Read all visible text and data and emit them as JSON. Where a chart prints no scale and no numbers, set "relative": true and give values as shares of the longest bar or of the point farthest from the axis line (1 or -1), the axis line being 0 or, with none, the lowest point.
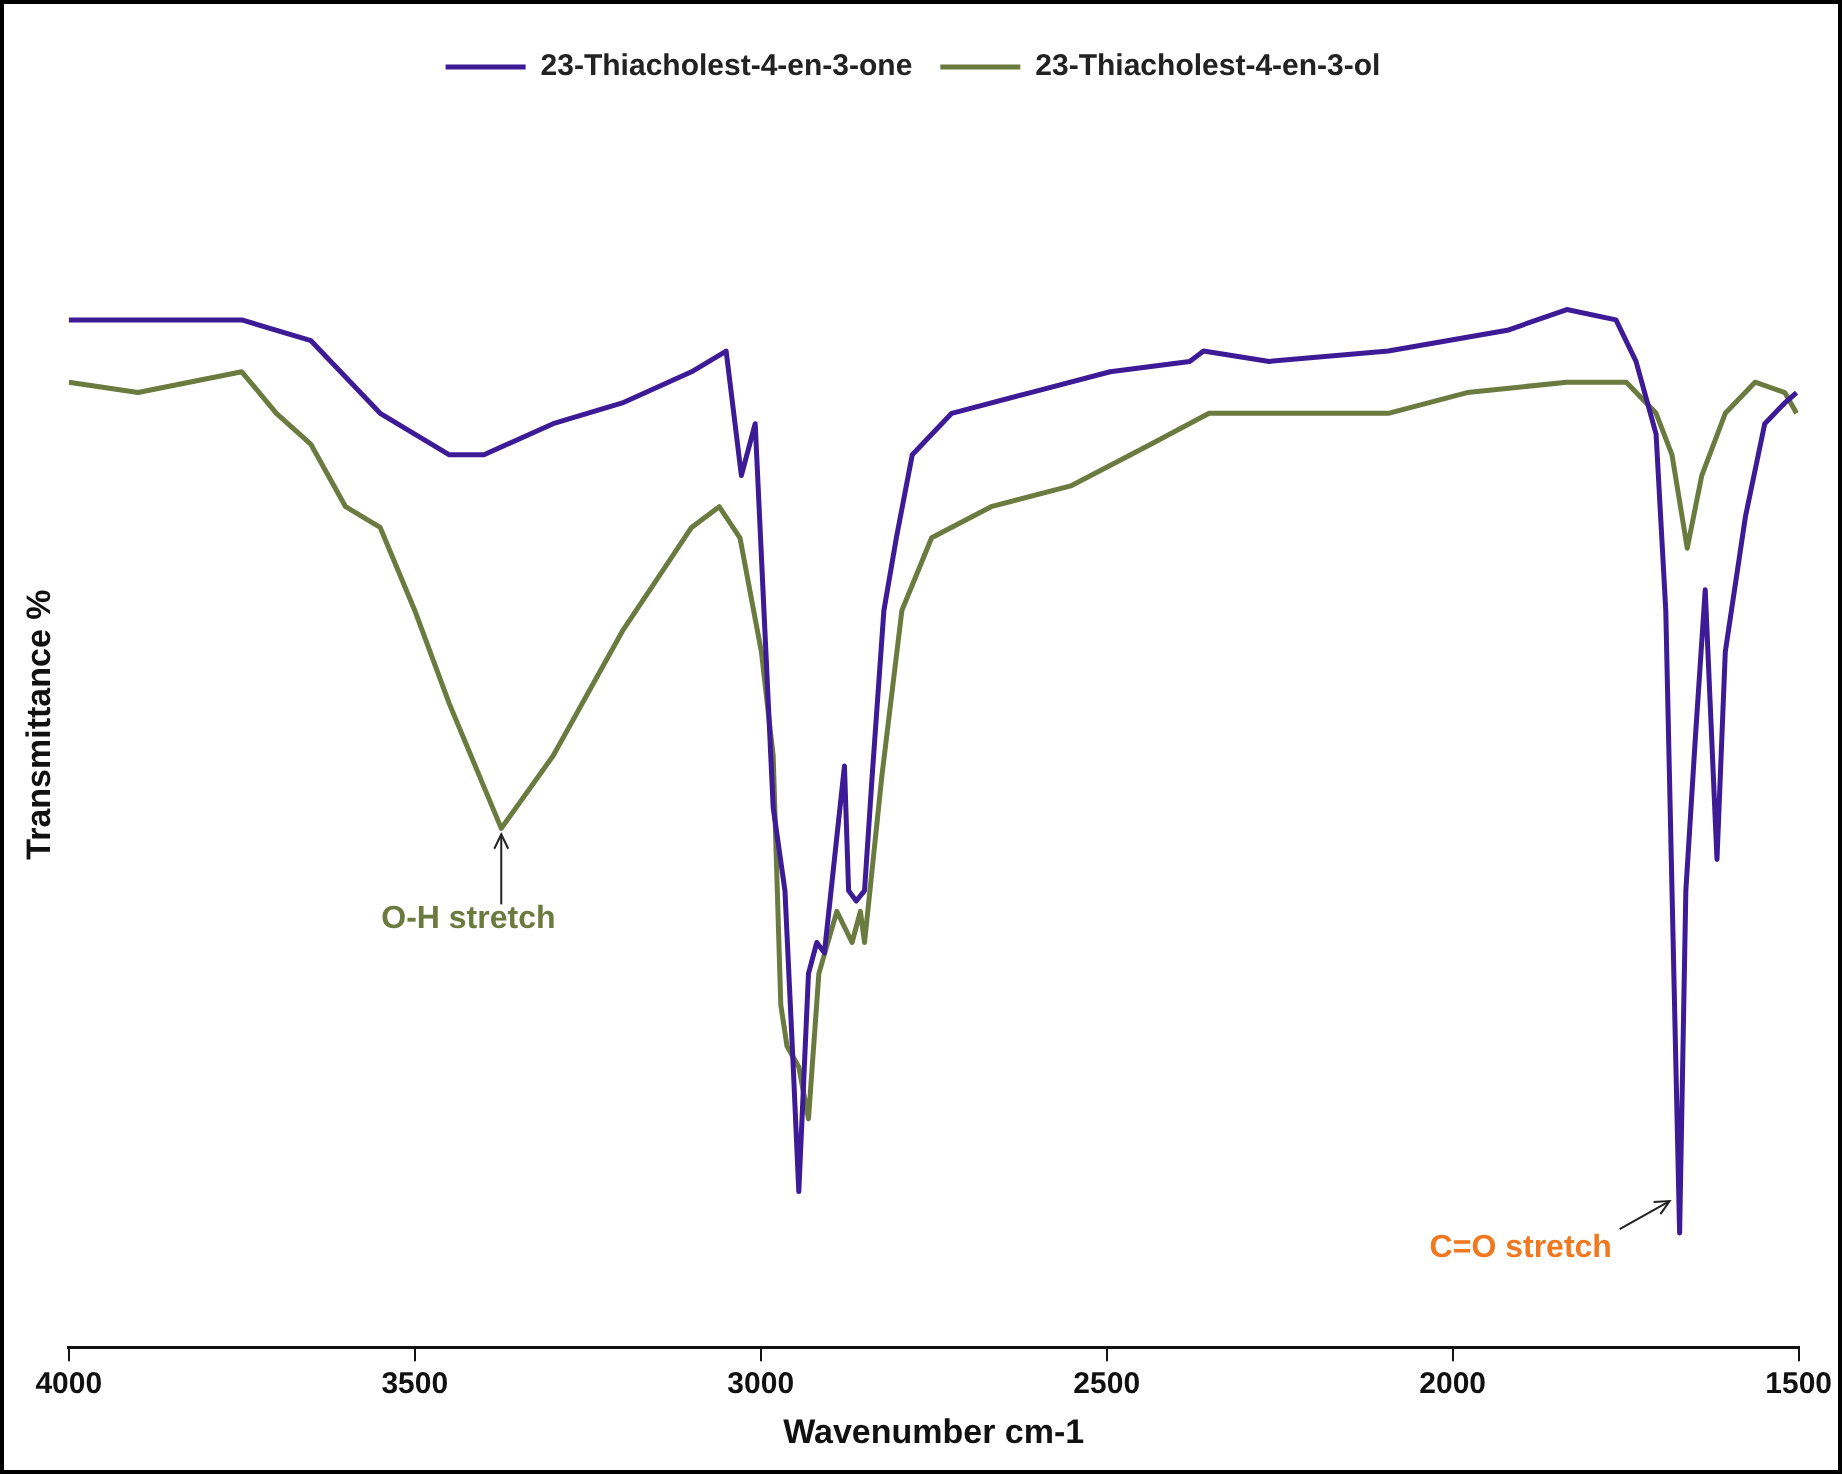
{
  "chart_data": {
    "type": "line",
    "xlabel": "Wavenumber cm-1",
    "ylabel": "Transmittance %",
    "relative": true,
    "xlim": [
      4000,
      1500
    ],
    "xticks": [
      4000,
      3500,
      3000,
      2500,
      2000,
      1500
    ],
    "grid": false,
    "legend": "top",
    "marker": "none",
    "line_style": "solid",
    "series": [
      {
        "name": "23-Thiacholest-4-en-3-one",
        "color": "#3d1a96",
        "x": [
          4000,
          3900,
          3750,
          3650,
          3550,
          3450,
          3400,
          3300,
          3200,
          3100,
          3050,
          3028,
          3008,
          2982,
          2965,
          2953,
          2945,
          2931,
          2919,
          2908,
          2879,
          2873,
          2862,
          2850,
          2839,
          2822,
          2804,
          2781,
          2724,
          2610,
          2495,
          2380,
          2360,
          2265,
          2093,
          1921,
          1835,
          1764,
          1735,
          1706,
          1692,
          1678,
          1672,
          1663,
          1649,
          1635,
          1618,
          1606,
          1577,
          1549,
          1520,
          1503
        ],
        "values": [
          0.99,
          0.99,
          0.99,
          0.97,
          0.9,
          0.86,
          0.86,
          0.89,
          0.91,
          0.94,
          0.96,
          0.84,
          0.89,
          0.52,
          0.44,
          0.27,
          0.15,
          0.36,
          0.39,
          0.38,
          0.56,
          0.44,
          0.43,
          0.44,
          0.55,
          0.71,
          0.78,
          0.86,
          0.9,
          0.92,
          0.94,
          0.95,
          0.96,
          0.95,
          0.96,
          0.98,
          1,
          0.99,
          0.95,
          0.88,
          0.71,
          0.29,
          0.11,
          0.44,
          0.59,
          0.73,
          0.47,
          0.67,
          0.8,
          0.89,
          0.91,
          0.92
        ]
      },
      {
        "name": "23-Thiacholest-4-en-3-ol",
        "color": "#6b7a3e",
        "x": [
          4000,
          3900,
          3750,
          3700,
          3650,
          3600,
          3550,
          3500,
          3450,
          3400,
          3375,
          3300,
          3250,
          3200,
          3150,
          3100,
          3060,
          3030,
          2999,
          2982,
          2971,
          2962,
          2945,
          2931,
          2916,
          2890,
          2868,
          2856,
          2850,
          2825,
          2796,
          2753,
          2667,
          2552,
          2437,
          2352,
          2237,
          2093,
          1979,
          1835,
          1749,
          1706,
          1683,
          1661,
          1640,
          1606,
          1563,
          1520,
          1503
        ],
        "values": [
          0.93,
          0.92,
          0.94,
          0.9,
          0.87,
          0.81,
          0.79,
          0.71,
          0.62,
          0.54,
          0.5,
          0.57,
          0.63,
          0.69,
          0.74,
          0.79,
          0.81,
          0.78,
          0.67,
          0.57,
          0.33,
          0.29,
          0.27,
          0.22,
          0.36,
          0.42,
          0.39,
          0.42,
          0.39,
          0.55,
          0.71,
          0.78,
          0.81,
          0.83,
          0.87,
          0.9,
          0.9,
          0.9,
          0.92,
          0.93,
          0.93,
          0.9,
          0.86,
          0.77,
          0.84,
          0.9,
          0.93,
          0.92,
          0.9
        ]
      }
    ],
    "annotations": [
      {
        "text": "O-H stretch",
        "x": 3375,
        "y": 0.5
      },
      {
        "text": "C=O stretch",
        "x": 1672,
        "y": 0.11
      }
    ]
  }
}
